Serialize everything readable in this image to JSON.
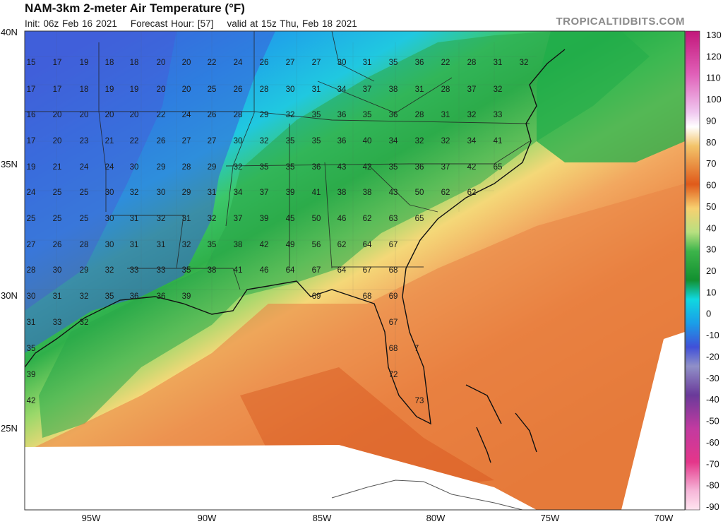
{
  "header": {
    "title": "NAM-3km 2-meter Air Temperature (°F)",
    "init": "Init: 06z Feb 16 2021",
    "forecast_hour": "Forecast Hour: [57]",
    "valid": "valid at 15z Thu, Feb 18 2021",
    "brand": "TROPICALTIDBITS.COM"
  },
  "lat_labels": [
    "40N",
    "35N",
    "30N",
    "25N"
  ],
  "lon_labels": [
    "95W",
    "90W",
    "85W",
    "80W",
    "75W",
    "70W"
  ],
  "colorbar": {
    "labels": [
      "130",
      "120",
      "110",
      "100",
      "90",
      "80",
      "70",
      "60",
      "50",
      "40",
      "30",
      "20",
      "10",
      "0",
      "-10",
      "-20",
      "-30",
      "-40",
      "-50",
      "-60",
      "-70",
      "-80",
      "-90"
    ]
  },
  "temperature_labels": [
    "15",
    "17",
    "19",
    "18",
    "18",
    "20",
    "20",
    "22",
    "24",
    "26",
    "27",
    "27",
    "30",
    "31",
    "35",
    "36",
    "22",
    "28",
    "31",
    "32",
    "17",
    "17",
    "18",
    "19",
    "19",
    "20",
    "20",
    "25",
    "26",
    "28",
    "30",
    "31",
    "34",
    "37",
    "38",
    "31",
    "28",
    "37",
    "32",
    "16",
    "20",
    "20",
    "20",
    "20",
    "22",
    "24",
    "26",
    "28",
    "29",
    "32",
    "35",
    "36",
    "35",
    "36",
    "28",
    "31",
    "32",
    "33",
    "17",
    "20",
    "23",
    "21",
    "22",
    "26",
    "27",
    "27",
    "30",
    "32",
    "35",
    "35",
    "36",
    "40",
    "34",
    "32",
    "32",
    "34",
    "41",
    "19",
    "21",
    "24",
    "24",
    "30",
    "29",
    "28",
    "29",
    "32",
    "35",
    "35",
    "36",
    "43",
    "42",
    "35",
    "36",
    "37",
    "42",
    "65",
    "24",
    "25",
    "25",
    "30",
    "32",
    "30",
    "29",
    "31",
    "34",
    "37",
    "39",
    "41",
    "38",
    "38",
    "43",
    "50",
    "62",
    "62",
    "25",
    "25",
    "25",
    "30",
    "31",
    "32",
    "31",
    "32",
    "37",
    "39",
    "45",
    "50",
    "46",
    "62",
    "63",
    "65",
    "27",
    "26",
    "28",
    "30",
    "31",
    "31",
    "32",
    "35",
    "38",
    "42",
    "49",
    "56",
    "62",
    "64",
    "67",
    "28",
    "30",
    "29",
    "32",
    "33",
    "33",
    "35",
    "38",
    "41",
    "46",
    "64",
    "67",
    "64",
    "67",
    "68",
    "30",
    "31",
    "32",
    "35",
    "36",
    "36",
    "39",
    "69",
    "68",
    "69",
    "31",
    "33",
    "32",
    "67",
    "35",
    "68",
    "7",
    "39",
    "72",
    "42",
    "73"
  ]
}
